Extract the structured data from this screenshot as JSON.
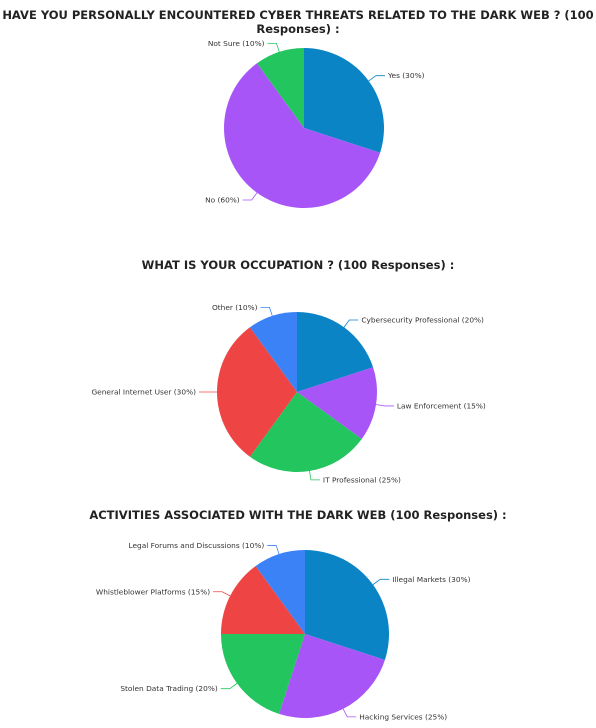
{
  "chart_data": [
    {
      "type": "pie",
      "title": "HAVE YOU PERSONALLY ENCOUNTERED CYBER THREATS RELATED TO THE DARK WEB ? (100 Responses) :",
      "categories": [
        "Yes (30%)",
        "No (60%)",
        "Not Sure (10%)"
      ],
      "values": [
        30,
        60,
        10
      ],
      "colors": [
        "#0b84c6",
        "#a855f7",
        "#22c55e"
      ]
    },
    {
      "type": "pie",
      "title": "WHAT IS YOUR OCCUPATION ? (100 Responses) :",
      "categories": [
        "Cybersecurity Professional (20%)",
        "Law Enforcement (15%)",
        "IT Professional (25%)",
        "General Internet User (30%)",
        "Other (10%)"
      ],
      "values": [
        20,
        15,
        25,
        30,
        10
      ],
      "colors": [
        "#0b84c6",
        "#a855f7",
        "#22c55e",
        "#ef4444",
        "#3b82f6"
      ]
    },
    {
      "type": "pie",
      "title": "ACTIVITIES ASSOCIATED WITH THE DARK WEB (100 Responses) :",
      "categories": [
        "Illegal Markets (30%)",
        "Hacking Services (25%)",
        "Stolen Data Trading (20%)",
        "Whistleblower Platforms (15%)",
        "Legal Forums and Discussions (10%)"
      ],
      "values": [
        30,
        25,
        20,
        15,
        10
      ],
      "colors": [
        "#0b84c6",
        "#a855f7",
        "#22c55e",
        "#ef4444",
        "#3b82f6"
      ]
    }
  ]
}
